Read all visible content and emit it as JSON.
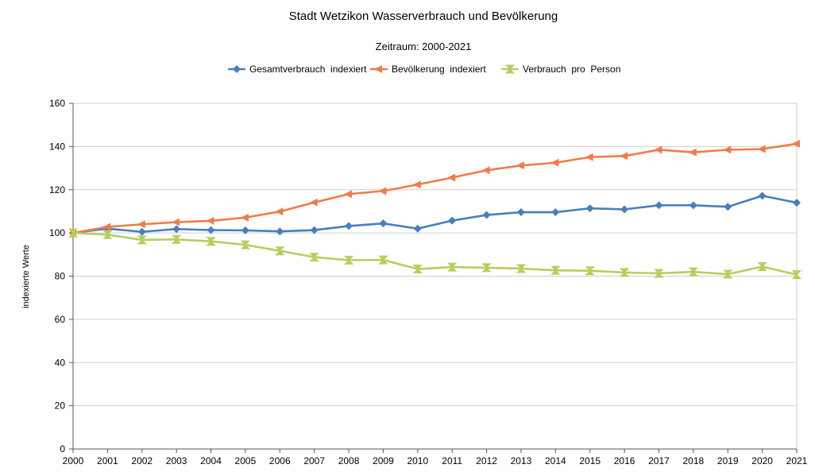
{
  "chart_data": {
    "type": "line",
    "title": "Stadt Wetzikon Wasserverbrauch und Bevölkerung",
    "subtitle": "Zeitraum: 2000-2021",
    "xlabel": "",
    "ylabel": "indexierte Werte",
    "ylim": [
      0,
      160
    ],
    "yticks": [
      0,
      20,
      40,
      60,
      80,
      100,
      120,
      140,
      160
    ],
    "grid": true,
    "legend_position": "top",
    "categories": [
      "2000",
      "2001",
      "2002",
      "2003",
      "2004",
      "2005",
      "2006",
      "2007",
      "2008",
      "2009",
      "2010",
      "2011",
      "2012",
      "2013",
      "2014",
      "2015",
      "2016",
      "2017",
      "2018",
      "2019",
      "2020",
      "2021"
    ],
    "series": [
      {
        "name": "Gesamtverbrauch  indexiert",
        "color": "#4a7ebb",
        "marker": "diamond",
        "values": [
          100,
          102,
          100.5,
          101.8,
          101.3,
          101.2,
          100.7,
          101.3,
          103.2,
          104.4,
          102,
          105.7,
          108.3,
          109.6,
          109.6,
          111.4,
          110.9,
          112.8,
          112.8,
          112.1,
          117.2,
          114
        ]
      },
      {
        "name": "Bevölkerung  indexiert",
        "color": "#ee7d4a",
        "marker": "triangle-left",
        "values": [
          100,
          102.8,
          104,
          105,
          105.6,
          107.1,
          109.9,
          114.1,
          118,
          119.4,
          122.4,
          125.6,
          129,
          131.2,
          132.5,
          135.1,
          135.6,
          138.5,
          137.3,
          138.5,
          138.8,
          141.3
        ]
      },
      {
        "name": "Verbrauch  pro  Person",
        "color": "#b5cf5e",
        "marker": "hourglass",
        "values": [
          100,
          99.2,
          96.8,
          97,
          96.1,
          94.5,
          91.7,
          88.8,
          87.4,
          87.5,
          83.3,
          84.2,
          83.9,
          83.5,
          82.7,
          82.5,
          81.7,
          81.3,
          82,
          80.9,
          84.4,
          80.7
        ]
      }
    ]
  }
}
